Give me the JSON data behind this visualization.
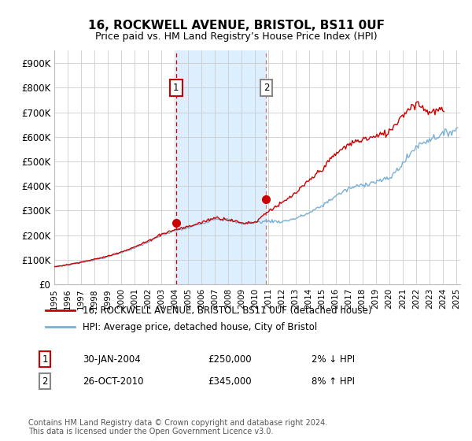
{
  "title": "16, ROCKWELL AVENUE, BRISTOL, BS11 0UF",
  "subtitle": "Price paid vs. HM Land Registry’s House Price Index (HPI)",
  "property_label": "16, ROCKWELL AVENUE, BRISTOL, BS11 0UF (detached house)",
  "hpi_label": "HPI: Average price, detached house, City of Bristol",
  "transaction1_date": "30-JAN-2004",
  "transaction1_price": "£250,000",
  "transaction1_hpi": "2% ↓ HPI",
  "transaction1_year": 2004.08,
  "transaction1_value": 250000,
  "transaction2_date": "26-OCT-2010",
  "transaction2_price": "£345,000",
  "transaction2_hpi": "8% ↑ HPI",
  "transaction2_year": 2010.82,
  "transaction2_value": 345000,
  "footnote": "Contains HM Land Registry data © Crown copyright and database right 2024.\nThis data is licensed under the Open Government Licence v3.0.",
  "property_color": "#cc0000",
  "hpi_color": "#7ab0d4",
  "highlight_color": "#ddeeff",
  "vline1_color": "#cc0000",
  "vline2_color": "#cc7777",
  "label_box1_color": "#cc0000",
  "label_box2_color": "#888888",
  "ylim_min": 0,
  "ylim_max": 950000,
  "xlim_min": 1995,
  "xlim_max": 2025.3
}
